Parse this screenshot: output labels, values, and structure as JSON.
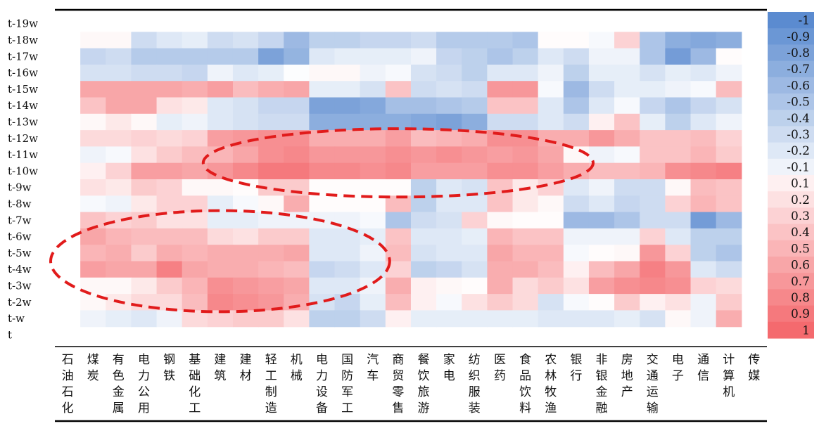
{
  "chart_data": {
    "type": "heatmap",
    "title": "",
    "xlabel": "",
    "ylabel": "",
    "rows": [
      "t-19w",
      "t-18w",
      "t-17w",
      "t-16w",
      "t-15w",
      "t-14w",
      "t-13w",
      "t-12w",
      "t-11w",
      "t-10w",
      "t-9w",
      "t-8w",
      "t-7w",
      "t-6w",
      "t-5w",
      "t-4w",
      "t-3w",
      "t-2w",
      "t-w",
      "t"
    ],
    "columns": [
      [
        "石",
        "油",
        "石",
        "化"
      ],
      [
        "煤",
        "炭"
      ],
      [
        "有",
        "色",
        "金",
        "属"
      ],
      [
        "电",
        "力",
        "公",
        "用"
      ],
      [
        "钢",
        "铁"
      ],
      [
        "基",
        "础",
        "化",
        "工"
      ],
      [
        "建",
        "筑"
      ],
      [
        "建",
        "材"
      ],
      [
        "轻",
        "工",
        "制",
        "造"
      ],
      [
        "机",
        "械"
      ],
      [
        "电",
        "力",
        "设",
        "备"
      ],
      [
        "国",
        "防",
        "军",
        "工"
      ],
      [
        "汽",
        "车"
      ],
      [
        "商",
        "贸",
        "零",
        "售"
      ],
      [
        "餐",
        "饮",
        "旅",
        "游"
      ],
      [
        "家",
        "电"
      ],
      [
        "纺",
        "织",
        "服",
        "装"
      ],
      [
        "医",
        "药"
      ],
      [
        "食",
        "品",
        "饮",
        "料"
      ],
      [
        "农",
        "林",
        "牧",
        "渔"
      ],
      [
        "银",
        "行"
      ],
      [
        "非",
        "银",
        "金",
        "融"
      ],
      [
        "房",
        "地",
        "产"
      ],
      [
        "交",
        "通",
        "运",
        "输"
      ],
      [
        "电",
        "子"
      ],
      [
        "通",
        "信"
      ],
      [
        "计",
        "算",
        "机"
      ],
      [
        "传",
        "媒"
      ]
    ],
    "values": [
      [
        null,
        null,
        null,
        null,
        null,
        null,
        null,
        null,
        null,
        null,
        null,
        null,
        null,
        null,
        null,
        null,
        null,
        null,
        null,
        null,
        null,
        null,
        null,
        null,
        null,
        null,
        null,
        null
      ],
      [
        null,
        0.05,
        0.05,
        -0.3,
        -0.2,
        -0.15,
        -0.3,
        -0.25,
        -0.35,
        -0.6,
        -0.4,
        -0.4,
        -0.35,
        -0.35,
        -0.3,
        -0.45,
        -0.45,
        -0.45,
        -0.5,
        0.02,
        0.02,
        -0.05,
        0.3,
        -0.5,
        -0.7,
        -0.75,
        -0.7,
        null
      ],
      [
        null,
        -0.35,
        -0.3,
        -0.45,
        -0.45,
        -0.45,
        -0.45,
        -0.45,
        -0.8,
        -0.65,
        -0.2,
        -0.15,
        -0.15,
        -0.15,
        -0.1,
        -0.35,
        -0.4,
        -0.5,
        -0.4,
        -0.2,
        -0.3,
        -0.1,
        -0.1,
        -0.5,
        -0.85,
        -0.6,
        0.02,
        null
      ],
      [
        null,
        -0.25,
        -0.25,
        -0.3,
        -0.3,
        -0.35,
        -0.1,
        -0.2,
        -0.15,
        -0.02,
        0.05,
        0.05,
        -0.1,
        -0.05,
        -0.25,
        -0.3,
        -0.4,
        -0.2,
        -0.2,
        -0.1,
        -0.4,
        -0.15,
        -0.15,
        -0.25,
        -0.15,
        -0.2,
        -0.1,
        null
      ],
      [
        null,
        0.6,
        0.6,
        0.6,
        0.6,
        0.55,
        0.65,
        0.45,
        0.55,
        0.6,
        -0.15,
        -0.15,
        -0.25,
        0.4,
        -0.3,
        -0.25,
        -0.3,
        0.7,
        0.7,
        -0.05,
        -0.6,
        -0.3,
        -0.15,
        -0.15,
        -0.1,
        -0.05,
        0.45,
        null
      ],
      [
        null,
        0.4,
        0.6,
        0.6,
        0.2,
        0.15,
        -0.2,
        -0.25,
        -0.35,
        -0.35,
        -0.8,
        -0.8,
        -0.75,
        -0.55,
        -0.55,
        -0.5,
        -0.45,
        0.4,
        0.4,
        -0.2,
        -0.5,
        -0.2,
        -0.05,
        -0.35,
        -0.5,
        -0.35,
        -0.25,
        null
      ],
      [
        null,
        0.05,
        0.15,
        0.05,
        -0.15,
        -0.1,
        -0.2,
        -0.25,
        -0.3,
        -0.3,
        -0.7,
        -0.7,
        -0.7,
        -0.7,
        -0.75,
        -0.8,
        -0.7,
        -0.3,
        -0.3,
        -0.2,
        -0.3,
        0.1,
        0.4,
        -0.15,
        -0.4,
        -0.2,
        -0.1,
        null
      ],
      [
        null,
        0.25,
        0.25,
        0.3,
        0.25,
        0.3,
        0.65,
        0.7,
        0.75,
        0.75,
        0.55,
        0.55,
        0.55,
        0.65,
        0.45,
        0.5,
        0.55,
        0.75,
        0.75,
        0.55,
        0.55,
        0.7,
        0.55,
        0.4,
        0.4,
        0.45,
        0.3,
        null
      ],
      [
        null,
        -0.1,
        -0.05,
        0.2,
        0.35,
        0.45,
        0.5,
        0.6,
        0.75,
        0.8,
        0.7,
        0.7,
        0.7,
        0.75,
        0.7,
        0.75,
        0.7,
        0.65,
        0.7,
        0.6,
        0.05,
        -0.1,
        -0.05,
        0.4,
        0.4,
        0.5,
        0.35,
        null
      ],
      [
        null,
        0.1,
        0.3,
        0.65,
        0.65,
        0.6,
        0.7,
        0.8,
        0.9,
        0.9,
        0.8,
        0.8,
        0.75,
        0.8,
        0.65,
        0.65,
        0.65,
        0.75,
        0.75,
        0.65,
        0.55,
        0.45,
        0.45,
        0.5,
        0.75,
        0.8,
        0.85,
        null
      ],
      [
        null,
        0.2,
        0.15,
        0.35,
        0.3,
        0.05,
        0.05,
        0.02,
        0.35,
        0.35,
        0.02,
        0.02,
        0.02,
        0.02,
        -0.4,
        -0.2,
        -0.25,
        0.4,
        0.15,
        0.3,
        -0.2,
        -0.1,
        -0.3,
        -0.3,
        0.05,
        0.45,
        0.4,
        null
      ],
      [
        null,
        -0.05,
        -0.1,
        0.15,
        0.3,
        0.3,
        -0.15,
        -0.05,
        0.05,
        0.55,
        0.02,
        0.02,
        0.02,
        0.45,
        -0.4,
        -0.2,
        -0.2,
        0.4,
        0.15,
        0.05,
        -0.3,
        -0.2,
        -0.35,
        -0.3,
        0.3,
        0.5,
        0.4,
        null
      ],
      [
        null,
        0.4,
        0.3,
        0.35,
        0.2,
        0.2,
        -0.15,
        -0.15,
        -0.1,
        -0.1,
        -0.1,
        -0.1,
        -0.05,
        -0.5,
        -0.3,
        -0.25,
        0.3,
        0.05,
        0.02,
        0.02,
        -0.6,
        -0.6,
        -0.5,
        -0.3,
        -0.3,
        -0.85,
        -0.6,
        null
      ],
      [
        null,
        0.6,
        0.5,
        0.45,
        0.45,
        0.45,
        0.25,
        0.2,
        0.35,
        0.35,
        -0.2,
        -0.2,
        -0.15,
        0.4,
        -0.2,
        -0.2,
        -0.15,
        0.5,
        0.4,
        0.4,
        -0.1,
        -0.1,
        -0.1,
        0.3,
        -0.2,
        -0.4,
        -0.4,
        null
      ],
      [
        null,
        0.5,
        0.55,
        0.35,
        0.55,
        0.5,
        0.55,
        0.55,
        0.55,
        0.6,
        -0.2,
        -0.2,
        -0.1,
        0.45,
        -0.25,
        -0.2,
        -0.2,
        0.6,
        0.5,
        0.5,
        -0.05,
        0.02,
        0.05,
        0.7,
        0.3,
        -0.4,
        -0.5,
        null
      ],
      [
        null,
        0.65,
        0.6,
        0.6,
        0.85,
        0.6,
        0.55,
        0.55,
        0.5,
        0.45,
        -0.35,
        -0.3,
        -0.2,
        0.3,
        -0.4,
        -0.35,
        -0.25,
        0.55,
        0.55,
        0.45,
        0.1,
        0.45,
        0.6,
        0.85,
        0.7,
        -0.2,
        -0.3,
        null
      ],
      [
        null,
        0.05,
        0.05,
        0.15,
        0.35,
        0.5,
        0.75,
        0.7,
        0.65,
        0.6,
        -0.2,
        -0.2,
        -0.1,
        0.55,
        0.1,
        0.05,
        0.02,
        0.55,
        0.25,
        0.35,
        0.2,
        0.65,
        0.75,
        0.8,
        0.75,
        0.3,
        0.25,
        null
      ],
      [
        null,
        0.05,
        0.15,
        0.25,
        0.25,
        0.45,
        0.8,
        0.75,
        0.7,
        0.55,
        -0.25,
        -0.35,
        -0.15,
        0.45,
        0.1,
        -0.05,
        0.2,
        0.35,
        0.25,
        -0.25,
        -0.05,
        0.02,
        0.35,
        0.1,
        0.2,
        -0.1,
        0.35,
        null
      ],
      [
        null,
        -0.1,
        -0.15,
        -0.2,
        -0.1,
        0.25,
        0.3,
        0.35,
        0.35,
        0.2,
        -0.4,
        -0.4,
        -0.3,
        0.1,
        -0.15,
        -0.15,
        -0.15,
        -0.15,
        -0.15,
        -0.2,
        -0.2,
        -0.2,
        -0.15,
        -0.25,
        0.05,
        -0.1,
        0.55,
        null
      ],
      [
        null,
        null,
        null,
        null,
        null,
        null,
        null,
        null,
        null,
        null,
        null,
        null,
        null,
        null,
        null,
        null,
        null,
        null,
        null,
        null,
        null,
        null,
        null,
        null,
        null,
        null,
        null,
        null
      ]
    ],
    "colorbar": {
      "labels": [
        "-1",
        "-0.9",
        "-0.8",
        "-0.7",
        "-0.6",
        "-0.5",
        "-0.4",
        "-0.3",
        "-0.2",
        "-0.1",
        "0.1",
        "0.2",
        "0.3",
        "0.4",
        "0.5",
        "0.6",
        "0.7",
        "0.8",
        "0.9",
        "1"
      ],
      "values": [
        -1,
        -0.9,
        -0.8,
        -0.7,
        -0.6,
        -0.5,
        -0.4,
        -0.3,
        -0.2,
        -0.1,
        0.1,
        0.2,
        0.3,
        0.4,
        0.5,
        0.6,
        0.7,
        0.8,
        0.9,
        1
      ]
    },
    "color_scale": {
      "negative": "#5b8bd0",
      "neutral": "#ffffff",
      "positive": "#f46a6e"
    },
    "annotations": [
      {
        "type": "dashed-ellipse",
        "color": "#e11b1b",
        "rows": [
          "t-12w",
          "t-9w"
        ],
        "columns": [
          "建筑",
          "银行"
        ]
      },
      {
        "type": "dashed-ellipse",
        "color": "#e11b1b",
        "rows": [
          "t-7w",
          "t-2w"
        ],
        "columns": [
          "石油石化",
          "汽车"
        ]
      }
    ]
  }
}
